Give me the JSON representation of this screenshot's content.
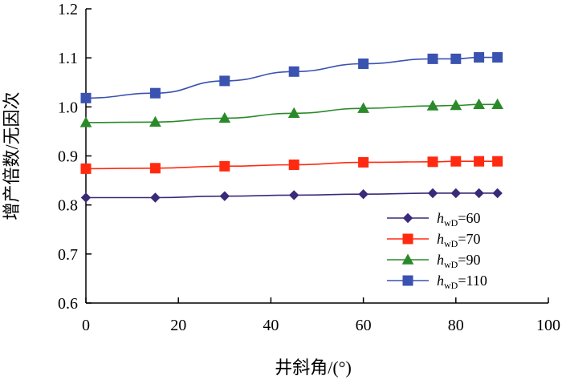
{
  "chart_data": {
    "type": "line",
    "title": "",
    "xlabel": "井斜角/(°)",
    "ylabel": "增产倍数/无因次",
    "xlim": [
      0,
      100
    ],
    "ylim": [
      0.6,
      1.2
    ],
    "xticks": [
      0,
      20,
      40,
      60,
      80,
      100
    ],
    "yticks": [
      0.6,
      0.7,
      0.8,
      0.9,
      1.0,
      1.1,
      1.2
    ],
    "xtick_labels": [
      "0",
      "20",
      "40",
      "60",
      "80",
      "100"
    ],
    "ytick_labels": [
      "0.6",
      "0.7",
      "0.8",
      "0.9",
      "1.0",
      "1.1",
      "1.2"
    ],
    "grid": false,
    "legend_position": "bottom-right",
    "series": [
      {
        "name": "h_wD=60",
        "name_parts": {
          "h": "h",
          "sub": "wD",
          "rest": "=60"
        },
        "color": "#3b2a78",
        "marker": "diamond",
        "x": [
          0,
          15,
          30,
          45,
          60,
          75,
          80,
          85,
          89
        ],
        "y": [
          0.815,
          0.815,
          0.818,
          0.82,
          0.822,
          0.824,
          0.824,
          0.824,
          0.824
        ]
      },
      {
        "name": "h_wD=70",
        "name_parts": {
          "h": "h",
          "sub": "wD",
          "rest": "=70"
        },
        "color": "#ff2a10",
        "marker": "square",
        "x": [
          0,
          15,
          30,
          45,
          60,
          75,
          80,
          85,
          89
        ],
        "y": [
          0.874,
          0.875,
          0.879,
          0.882,
          0.887,
          0.888,
          0.889,
          0.889,
          0.889
        ]
      },
      {
        "name": "h_wD=90",
        "name_parts": {
          "h": "h",
          "sub": "wD",
          "rest": "=90"
        },
        "color": "#2a8a2a",
        "marker": "triangle",
        "x": [
          0,
          15,
          30,
          45,
          60,
          75,
          80,
          85,
          89
        ],
        "y": [
          0.968,
          0.969,
          0.977,
          0.987,
          0.997,
          1.002,
          1.003,
          1.005,
          1.005
        ]
      },
      {
        "name": "h_wD=110",
        "name_parts": {
          "h": "h",
          "sub": "wD",
          "rest": "=110"
        },
        "color": "#3a52b0",
        "marker": "square",
        "x": [
          0,
          15,
          30,
          45,
          60,
          75,
          80,
          85,
          89
        ],
        "y": [
          1.018,
          1.028,
          1.053,
          1.072,
          1.088,
          1.098,
          1.098,
          1.101,
          1.101
        ]
      }
    ]
  }
}
